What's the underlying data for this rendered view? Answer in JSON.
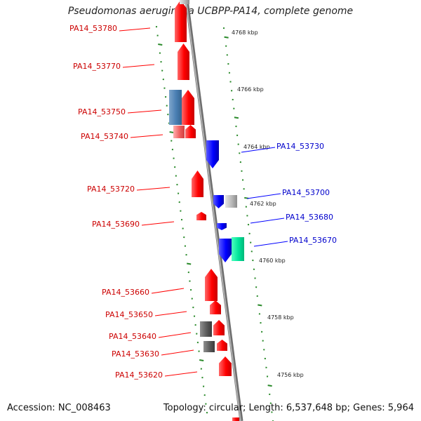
{
  "title": "Pseudomonas aeruginosa UCBPP-PA14, complete genome",
  "footer": {
    "accession": "Accession: NC_008463",
    "topology": "Topology: circular; Length: 6,537,648 bp; Genes: 5,964"
  },
  "colors": {
    "axis": "#8a8a8a",
    "tick": "#2a8a2a",
    "forward_gene": "#ff0000",
    "reverse_gene": "#0000ff",
    "left_label": "#cc0000",
    "right_label": "#0000cc"
  },
  "kbp_labels": [
    "4768 kbp",
    "4766 kbp",
    "4764 kbp",
    "4762 kbp",
    "4760 kbp",
    "4758 kbp",
    "4756 kbp"
  ],
  "left_genes": [
    "PA14_53780",
    "PA14_53770",
    "PA14_53750",
    "PA14_53740",
    "PA14_53720",
    "PA14_53690",
    "PA14_53660",
    "PA14_53650",
    "PA14_53640",
    "PA14_53630",
    "PA14_53620"
  ],
  "right_genes": [
    "PA14_53730",
    "PA14_53700",
    "PA14_53680",
    "PA14_53670"
  ]
}
